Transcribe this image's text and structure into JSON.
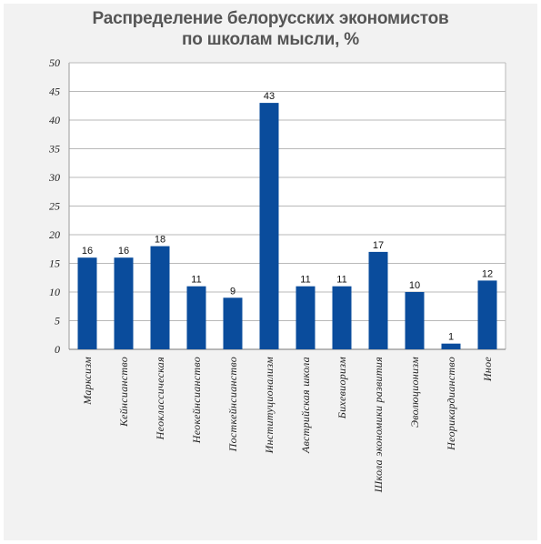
{
  "chart_data": {
    "type": "bar",
    "title": "Распределение белорусских экономистов",
    "subtitle": "по школам мысли, %",
    "categories": [
      "Марксизм",
      "Кейнсианство",
      "Неоклассическая",
      "Неокейнсианство",
      "Посткейнсианство",
      "Институционализм",
      "Австрийская школа",
      "Бихевиоризм",
      "Школа экономики развития",
      "Эволюционизм",
      "Неорикардианство",
      "Иное"
    ],
    "values": [
      16,
      16,
      18,
      11,
      9,
      43,
      11,
      11,
      17,
      10,
      1,
      12
    ],
    "data_labels": [
      "16",
      "16",
      "18",
      "11",
      "9",
      "43",
      "11",
      "11",
      "17",
      "10",
      "1",
      "12"
    ],
    "yticks": [
      "0",
      "5",
      "10",
      "15",
      "20",
      "25",
      "30",
      "35",
      "40",
      "45",
      "50"
    ],
    "ylim": [
      0,
      50
    ],
    "ytick_step": 5,
    "grid": true,
    "xlabel": "",
    "ylabel": "",
    "bar_color": "#0a4c9c"
  }
}
